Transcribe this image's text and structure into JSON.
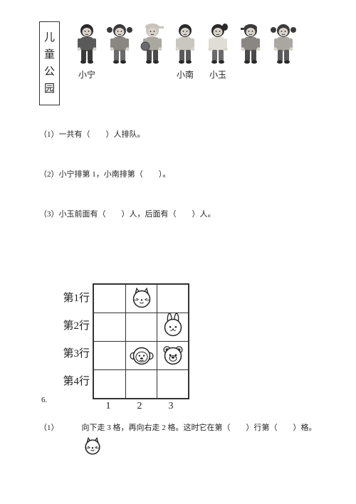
{
  "sign_chars": [
    "儿",
    "童",
    "公",
    "园"
  ],
  "kids": [
    {
      "name": "小宁",
      "palette": {
        "hair": "#2a2a2a",
        "shirt": "#5a5a5a",
        "pants": "#3a3a3a",
        "skin": "#d8d4cc"
      },
      "hat": false
    },
    {
      "name": "",
      "palette": {
        "hair": "#3a3a3a",
        "shirt": "#8a8682",
        "pants": "#6a6a6a",
        "skin": "#d8d4cc"
      },
      "hat": false,
      "pigtails": true
    },
    {
      "name": "",
      "palette": {
        "hair": "#c8c4bc",
        "shirt": "#aaa6a0",
        "pants": "#4a4a4a",
        "skin": "#d8d4cc"
      },
      "hat": true,
      "ball": true
    },
    {
      "name": "小南",
      "palette": {
        "hair": "#2a2a2a",
        "shirt": "#cac6c0",
        "pants": "#5a5a5a",
        "skin": "#d8d4cc"
      },
      "hat": false
    },
    {
      "name": "小玉",
      "palette": {
        "hair": "#2a2a2a",
        "shirt": "#e0ddd6",
        "pants": "#6a6a6a",
        "skin": "#d8d4cc"
      },
      "hat": false,
      "ponytail": true
    },
    {
      "name": "",
      "palette": {
        "hair": "#3a3a3a",
        "shirt": "#8a8682",
        "pants": "#4a4a4a",
        "skin": "#d8d4cc"
      },
      "hat": true,
      "cap": true
    },
    {
      "name": "",
      "palette": {
        "hair": "#3a3a3a",
        "shirt": "#aaa6a0",
        "pants": "#5a5a5a",
        "skin": "#d8d4cc"
      },
      "hat": false,
      "pigtails": true
    }
  ],
  "questions": {
    "q1": "（1）一共有（　　）人排队。",
    "q2": "（2）小宁排第 1，小南排第（　　）。",
    "q3": "（3）小玉前面有（　　）人，后面有（　　）人。"
  },
  "grid": {
    "rows": 4,
    "cols": 3,
    "row_labels": [
      "第1行",
      "第2行",
      "第3行",
      "第4行"
    ],
    "col_labels": [
      "1",
      "2",
      "3"
    ],
    "icons": [
      {
        "row": 0,
        "col": 1,
        "type": "cat"
      },
      {
        "row": 1,
        "col": 2,
        "type": "rabbit"
      },
      {
        "row": 2,
        "col": 1,
        "type": "monkey"
      },
      {
        "row": 2,
        "col": 2,
        "type": "bear"
      }
    ]
  },
  "q6_number": "6.",
  "q6_1": {
    "prefix": "（1）",
    "text": "向下走 3 格，再向右走 2 格。这时它在第（　　）行第（　　）格。",
    "icon": "cat"
  },
  "colors": {
    "text": "#222222",
    "border": "#333333",
    "bg": "#ffffff"
  }
}
